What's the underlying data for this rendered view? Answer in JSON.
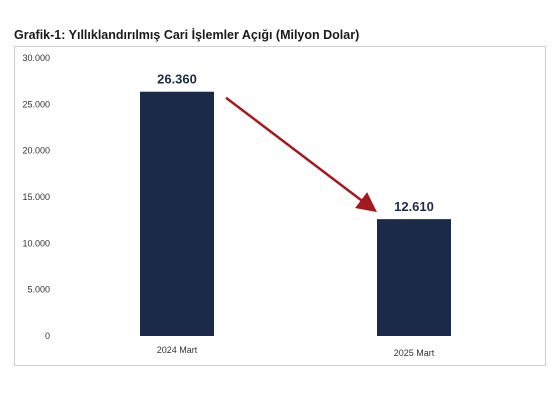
{
  "chart_data": {
    "type": "bar",
    "title": "Grafik-1: Yıllıklandırılmış Cari İşlemler Açığı (Milyon Dolar)",
    "categories": [
      "2024 Mart",
      "2025 Mart"
    ],
    "values": [
      26360,
      12610
    ],
    "value_labels": [
      "26.360",
      "12.610"
    ],
    "ylim": [
      0,
      30000
    ],
    "yticks": [
      0,
      5000,
      10000,
      15000,
      20000,
      25000,
      30000
    ],
    "ytick_labels": [
      "0",
      "5.000",
      "10.000",
      "15.000",
      "20.000",
      "25.000",
      "30.000"
    ],
    "grid": false,
    "legend": "none",
    "bar_color": "#1c2a4a",
    "arrow_color": "#a3191f",
    "annotation": "downward arrow from 2024 Mart bar to 2025 Mart bar"
  }
}
